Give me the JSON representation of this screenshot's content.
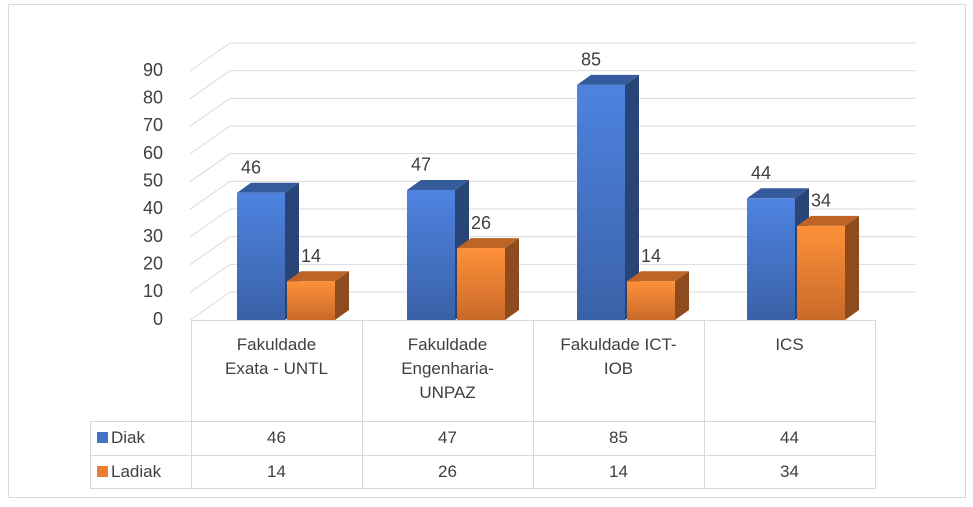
{
  "chart_data": {
    "type": "bar3d",
    "categories": [
      "Fakuldade Exata - UNTL",
      "Fakuldade Engenharia-UNPAZ",
      "Fakuldade ICT-IOB",
      "ICS"
    ],
    "series": [
      {
        "name": "Diak",
        "color": "#4472c4",
        "values": [
          46,
          47,
          85,
          44
        ]
      },
      {
        "name": "Ladiak",
        "color": "#ed7d31",
        "values": [
          14,
          26,
          14,
          34
        ]
      }
    ],
    "ylim": [
      0,
      90
    ],
    "yticks": [
      0,
      10,
      20,
      30,
      40,
      50,
      60,
      70,
      80,
      90
    ],
    "grid": true,
    "data_table": true
  }
}
